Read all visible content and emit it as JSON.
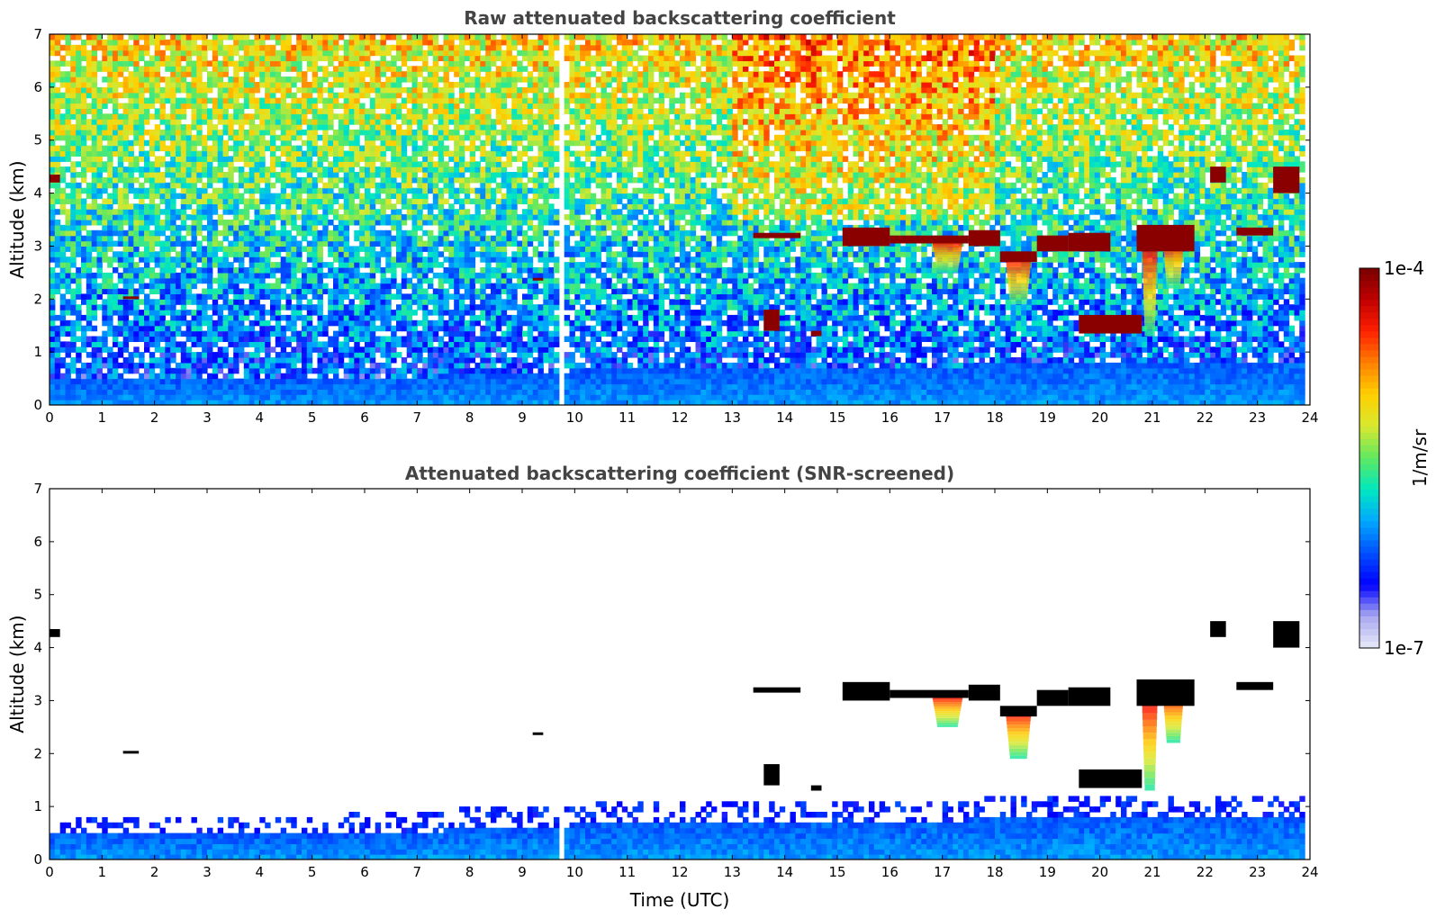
{
  "colormap": {
    "stops": [
      "#e8e8f8",
      "#a8a8f0",
      "#0000ff",
      "#0050ff",
      "#00a8ff",
      "#00e8c0",
      "#60e860",
      "#d8e830",
      "#ffd000",
      "#ff8000",
      "#ff2000",
      "#c00000",
      "#780000"
    ],
    "min_label": "1e-7",
    "max_label": "1e-4",
    "unit_label": "1/m/sr"
  },
  "chart_data": [
    {
      "type": "heatmap",
      "title": "Raw attenuated backscattering coefficient",
      "xlabel": "",
      "ylabel": "Altitude (km)",
      "xlim": [
        0,
        24
      ],
      "ylim": [
        0,
        7
      ],
      "xticks": [
        "0",
        "1",
        "2",
        "3",
        "4",
        "5",
        "6",
        "7",
        "8",
        "9",
        "10",
        "11",
        "12",
        "13",
        "14",
        "15",
        "16",
        "17",
        "18",
        "19",
        "20",
        "21",
        "22",
        "23",
        "24"
      ],
      "yticks": [
        "0",
        "1",
        "2",
        "3",
        "4",
        "5",
        "6",
        "7"
      ],
      "screened": false,
      "data_gap": [
        9.7,
        9.85
      ],
      "data_end": 23.85,
      "cloud_layers": [
        {
          "t": [
            0.0,
            0.2
          ],
          "z": [
            4.2,
            4.35
          ]
        },
        {
          "t": [
            1.4,
            1.7
          ],
          "z": [
            2.0,
            2.05
          ]
        },
        {
          "t": [
            9.2,
            9.4
          ],
          "z": [
            2.35,
            2.4
          ]
        },
        {
          "t": [
            13.4,
            14.3
          ],
          "z": [
            3.15,
            3.25
          ]
        },
        {
          "t": [
            15.1,
            16.0
          ],
          "z": [
            3.0,
            3.35
          ]
        },
        {
          "t": [
            16.0,
            17.5
          ],
          "z": [
            3.05,
            3.2
          ]
        },
        {
          "t": [
            17.5,
            18.1
          ],
          "z": [
            3.0,
            3.3
          ]
        },
        {
          "t": [
            18.1,
            18.8
          ],
          "z": [
            2.7,
            2.9
          ]
        },
        {
          "t": [
            18.8,
            19.4
          ],
          "z": [
            2.9,
            3.2
          ]
        },
        {
          "t": [
            19.4,
            20.2
          ],
          "z": [
            2.9,
            3.25
          ]
        },
        {
          "t": [
            20.7,
            21.8
          ],
          "z": [
            2.9,
            3.4
          ]
        },
        {
          "t": [
            22.1,
            22.4
          ],
          "z": [
            4.2,
            4.5
          ]
        },
        {
          "t": [
            22.6,
            23.3
          ],
          "z": [
            3.2,
            3.35
          ]
        },
        {
          "t": [
            23.3,
            23.8
          ],
          "z": [
            4.0,
            4.5
          ]
        },
        {
          "t": [
            19.6,
            20.8
          ],
          "z": [
            1.35,
            1.7
          ]
        },
        {
          "t": [
            13.6,
            13.9
          ],
          "z": [
            1.4,
            1.8
          ]
        },
        {
          "t": [
            14.5,
            14.7
          ],
          "z": [
            1.3,
            1.4
          ]
        }
      ],
      "aerosol_plumes": [
        {
          "t": [
            16.8,
            17.4
          ],
          "z": [
            2.5,
            3.1
          ]
        },
        {
          "t": [
            18.2,
            18.7
          ],
          "z": [
            1.9,
            2.8
          ]
        },
        {
          "t": [
            20.8,
            21.1
          ],
          "z": [
            1.3,
            3.0
          ]
        },
        {
          "t": [
            21.2,
            21.6
          ],
          "z": [
            2.2,
            3.1
          ]
        }
      ],
      "boundary_layer_top_km": [
        {
          "t": 0,
          "z": 0.45
        },
        {
          "t": 5,
          "z": 0.45
        },
        {
          "t": 10,
          "z": 0.65
        },
        {
          "t": 15,
          "z": 0.7
        },
        {
          "t": 20,
          "z": 0.8
        },
        {
          "t": 23.85,
          "z": 0.85
        }
      ]
    },
    {
      "type": "heatmap",
      "title": "Attenuated backscattering coefficient (SNR-screened)",
      "xlabel": "Time (UTC)",
      "ylabel": "Altitude (km)",
      "xlim": [
        0,
        24
      ],
      "ylim": [
        0,
        7
      ],
      "xticks": [
        "0",
        "1",
        "2",
        "3",
        "4",
        "5",
        "6",
        "7",
        "8",
        "9",
        "10",
        "11",
        "12",
        "13",
        "14",
        "15",
        "16",
        "17",
        "18",
        "19",
        "20",
        "21",
        "22",
        "23",
        "24"
      ],
      "yticks": [
        "0",
        "1",
        "2",
        "3",
        "4",
        "5",
        "6",
        "7"
      ],
      "screened": true,
      "data_gap": [
        9.7,
        9.85
      ],
      "data_end": 23.85
    }
  ]
}
